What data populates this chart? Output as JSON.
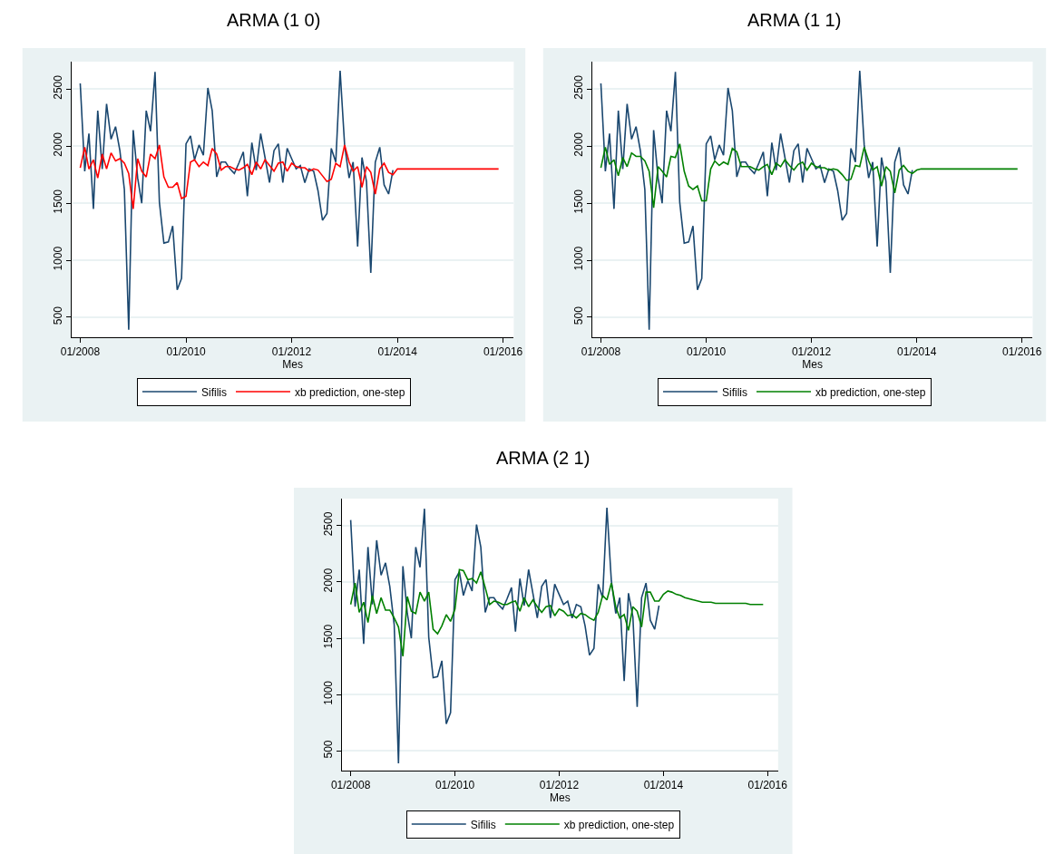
{
  "chart_data": [
    {
      "type": "line",
      "title": "ARMA (1 0)",
      "xlabel": "Mes",
      "grid": "y",
      "legend": "bottom",
      "x": [
        "2008-01",
        "2008-02",
        "2008-03",
        "2008-04",
        "2008-05",
        "2008-06",
        "2008-07",
        "2008-08",
        "2008-09",
        "2008-10",
        "2008-11",
        "2008-12",
        "2009-01",
        "2009-02",
        "2009-03",
        "2009-04",
        "2009-05",
        "2009-06",
        "2009-07",
        "2009-08",
        "2009-09",
        "2009-10",
        "2009-11",
        "2009-12",
        "2010-01",
        "2010-02",
        "2010-03",
        "2010-04",
        "2010-05",
        "2010-06",
        "2010-07",
        "2010-08",
        "2010-09",
        "2010-10",
        "2010-11",
        "2010-12",
        "2011-01",
        "2011-02",
        "2011-03",
        "2011-04",
        "2011-05",
        "2011-06",
        "2011-07",
        "2011-08",
        "2011-09",
        "2011-10",
        "2011-11",
        "2011-12",
        "2012-01",
        "2012-02",
        "2012-03",
        "2012-04",
        "2012-05",
        "2012-06",
        "2012-07",
        "2012-08",
        "2012-09",
        "2012-10",
        "2012-11",
        "2012-12",
        "2013-01",
        "2013-02",
        "2013-03",
        "2013-04",
        "2013-05",
        "2013-06",
        "2013-07",
        "2013-08",
        "2013-09",
        "2013-10",
        "2013-11",
        "2013-12",
        "2014-01",
        "2014-02",
        "2014-03",
        "2014-04",
        "2014-05",
        "2014-06",
        "2014-07",
        "2014-08",
        "2014-09",
        "2014-10",
        "2014-11",
        "2014-12",
        "2015-01",
        "2015-02",
        "2015-03",
        "2015-04",
        "2015-05",
        "2015-06",
        "2015-07",
        "2015-08",
        "2015-09",
        "2015-10",
        "2015-11",
        "2015-12"
      ],
      "xlim": [
        "2007-11-01",
        "2016-03-15"
      ],
      "ylim": [
        325,
        2740
      ],
      "xticks": [
        {
          "value": "2008-01",
          "label": "01/2008"
        },
        {
          "value": "2010-01",
          "label": "01/2010"
        },
        {
          "value": "2012-01",
          "label": "01/2012"
        },
        {
          "value": "2014-01",
          "label": "01/2014"
        },
        {
          "value": "2016-01",
          "label": "01/2016"
        }
      ],
      "yticks": [
        500,
        1000,
        1500,
        2000,
        2500
      ],
      "series": [
        {
          "name": "Sifilis",
          "color": "#1a476f",
          "values": [
            2550,
            1780,
            2110,
            1450,
            2310,
            1800,
            2370,
            2060,
            2170,
            1960,
            1620,
            390,
            2140,
            1720,
            1500,
            2310,
            2130,
            2650,
            1510,
            1150,
            1160,
            1300,
            740,
            840,
            2020,
            2090,
            1880,
            2010,
            1920,
            2510,
            2310,
            1730,
            1860,
            1860,
            1800,
            1760,
            1850,
            1950,
            1560,
            2030,
            1790,
            2110,
            1900,
            1680,
            1960,
            2020,
            1680,
            1980,
            1890,
            1800,
            1830,
            1680,
            1800,
            1780,
            1610,
            1350,
            1410,
            1980,
            1860,
            2660,
            2010,
            1720,
            1860,
            1120,
            1900,
            1690,
            890,
            1860,
            1990,
            1660,
            1580,
            1790,
            null,
            null,
            null,
            null,
            null,
            null,
            null,
            null,
            null,
            null,
            null,
            null,
            null,
            null,
            null,
            null,
            null,
            null,
            null,
            null,
            null,
            null,
            null,
            null
          ]
        },
        {
          "name": "xb prediction, one-step",
          "color": "#ff0000",
          "values": [
            1810,
            1990,
            1800,
            1880,
            1720,
            1930,
            1800,
            1940,
            1870,
            1890,
            1850,
            1760,
            1450,
            1890,
            1780,
            1730,
            1930,
            1890,
            2010,
            1730,
            1640,
            1640,
            1680,
            1540,
            1560,
            1860,
            1880,
            1820,
            1860,
            1830,
            1980,
            1930,
            1790,
            1820,
            1820,
            1800,
            1790,
            1810,
            1840,
            1750,
            1860,
            1800,
            1880,
            1830,
            1780,
            1850,
            1860,
            1780,
            1850,
            1820,
            1810,
            1810,
            1780,
            1800,
            1790,
            1740,
            1690,
            1710,
            1850,
            1820,
            2010,
            1860,
            1780,
            1820,
            1640,
            1820,
            1770,
            1580,
            1800,
            1850,
            1770,
            1750,
            1800,
            1800,
            1800,
            1800,
            1800,
            1800,
            1800,
            1800,
            1800,
            1800,
            1800,
            1800,
            1800,
            1800,
            1800,
            1800,
            1800,
            1800,
            1800,
            1800,
            1800,
            1800,
            1800,
            1800
          ]
        }
      ]
    },
    {
      "type": "line",
      "title": "ARMA (1 1)",
      "xlabel": "Mes",
      "grid": "y",
      "legend": "bottom",
      "x": [
        "2008-01",
        "2008-02",
        "2008-03",
        "2008-04",
        "2008-05",
        "2008-06",
        "2008-07",
        "2008-08",
        "2008-09",
        "2008-10",
        "2008-11",
        "2008-12",
        "2009-01",
        "2009-02",
        "2009-03",
        "2009-04",
        "2009-05",
        "2009-06",
        "2009-07",
        "2009-08",
        "2009-09",
        "2009-10",
        "2009-11",
        "2009-12",
        "2010-01",
        "2010-02",
        "2010-03",
        "2010-04",
        "2010-05",
        "2010-06",
        "2010-07",
        "2010-08",
        "2010-09",
        "2010-10",
        "2010-11",
        "2010-12",
        "2011-01",
        "2011-02",
        "2011-03",
        "2011-04",
        "2011-05",
        "2011-06",
        "2011-07",
        "2011-08",
        "2011-09",
        "2011-10",
        "2011-11",
        "2011-12",
        "2012-01",
        "2012-02",
        "2012-03",
        "2012-04",
        "2012-05",
        "2012-06",
        "2012-07",
        "2012-08",
        "2012-09",
        "2012-10",
        "2012-11",
        "2012-12",
        "2013-01",
        "2013-02",
        "2013-03",
        "2013-04",
        "2013-05",
        "2013-06",
        "2013-07",
        "2013-08",
        "2013-09",
        "2013-10",
        "2013-11",
        "2013-12",
        "2014-01",
        "2014-02",
        "2014-03",
        "2014-04",
        "2014-05",
        "2014-06",
        "2014-07",
        "2014-08",
        "2014-09",
        "2014-10",
        "2014-11",
        "2014-12",
        "2015-01",
        "2015-02",
        "2015-03",
        "2015-04",
        "2015-05",
        "2015-06",
        "2015-07",
        "2015-08",
        "2015-09",
        "2015-10",
        "2015-11",
        "2015-12"
      ],
      "xlim": [
        "2007-11-01",
        "2016-03-15"
      ],
      "ylim": [
        325,
        2740
      ],
      "xticks": [
        {
          "value": "2008-01",
          "label": "01/2008"
        },
        {
          "value": "2010-01",
          "label": "01/2010"
        },
        {
          "value": "2012-01",
          "label": "01/2012"
        },
        {
          "value": "2014-01",
          "label": "01/2014"
        },
        {
          "value": "2016-01",
          "label": "01/2016"
        }
      ],
      "yticks": [
        500,
        1000,
        1500,
        2000,
        2500
      ],
      "series": [
        {
          "name": "Sifilis",
          "color": "#1a476f",
          "values": [
            2550,
            1780,
            2110,
            1450,
            2310,
            1800,
            2370,
            2060,
            2170,
            1960,
            1620,
            390,
            2140,
            1720,
            1500,
            2310,
            2130,
            2650,
            1510,
            1150,
            1160,
            1300,
            740,
            840,
            2020,
            2090,
            1880,
            2010,
            1920,
            2510,
            2310,
            1730,
            1860,
            1860,
            1800,
            1760,
            1850,
            1950,
            1560,
            2030,
            1790,
            2110,
            1900,
            1680,
            1960,
            2020,
            1680,
            1980,
            1890,
            1800,
            1830,
            1680,
            1800,
            1780,
            1610,
            1350,
            1410,
            1980,
            1860,
            2660,
            2010,
            1720,
            1860,
            1120,
            1900,
            1690,
            890,
            1860,
            1990,
            1660,
            1580,
            1790,
            null,
            null,
            null,
            null,
            null,
            null,
            null,
            null,
            null,
            null,
            null,
            null,
            null,
            null,
            null,
            null,
            null,
            null,
            null,
            null,
            null,
            null,
            null,
            null
          ]
        },
        {
          "name": "xb prediction, one-step",
          "color": "#008000",
          "values": [
            1810,
            1990,
            1840,
            1880,
            1740,
            1900,
            1820,
            1940,
            1910,
            1910,
            1870,
            1780,
            1460,
            1820,
            1780,
            1730,
            1910,
            1900,
            2020,
            1780,
            1650,
            1620,
            1650,
            1520,
            1520,
            1800,
            1870,
            1830,
            1860,
            1840,
            1980,
            1950,
            1820,
            1820,
            1820,
            1800,
            1790,
            1820,
            1840,
            1750,
            1850,
            1820,
            1880,
            1830,
            1790,
            1840,
            1860,
            1790,
            1850,
            1820,
            1810,
            1810,
            1790,
            1800,
            1790,
            1750,
            1700,
            1710,
            1830,
            1820,
            1990,
            1870,
            1790,
            1820,
            1650,
            1820,
            1780,
            1590,
            1790,
            1830,
            1780,
            1760,
            1790,
            1800,
            1800,
            1800,
            1800,
            1800,
            1800,
            1800,
            1800,
            1800,
            1800,
            1800,
            1800,
            1800,
            1800,
            1800,
            1800,
            1800,
            1800,
            1800,
            1800,
            1800,
            1800,
            1800
          ]
        }
      ]
    },
    {
      "type": "line",
      "title": "ARMA (2 1)",
      "xlabel": "Mes",
      "grid": "y",
      "legend": "bottom",
      "x": [
        "2008-01",
        "2008-02",
        "2008-03",
        "2008-04",
        "2008-05",
        "2008-06",
        "2008-07",
        "2008-08",
        "2008-09",
        "2008-10",
        "2008-11",
        "2008-12",
        "2009-01",
        "2009-02",
        "2009-03",
        "2009-04",
        "2009-05",
        "2009-06",
        "2009-07",
        "2009-08",
        "2009-09",
        "2009-10",
        "2009-11",
        "2009-12",
        "2010-01",
        "2010-02",
        "2010-03",
        "2010-04",
        "2010-05",
        "2010-06",
        "2010-07",
        "2010-08",
        "2010-09",
        "2010-10",
        "2010-11",
        "2010-12",
        "2011-01",
        "2011-02",
        "2011-03",
        "2011-04",
        "2011-05",
        "2011-06",
        "2011-07",
        "2011-08",
        "2011-09",
        "2011-10",
        "2011-11",
        "2011-12",
        "2012-01",
        "2012-02",
        "2012-03",
        "2012-04",
        "2012-05",
        "2012-06",
        "2012-07",
        "2012-08",
        "2012-09",
        "2012-10",
        "2012-11",
        "2012-12",
        "2013-01",
        "2013-02",
        "2013-03",
        "2013-04",
        "2013-05",
        "2013-06",
        "2013-07",
        "2013-08",
        "2013-09",
        "2013-10",
        "2013-11",
        "2013-12",
        "2014-01",
        "2014-02",
        "2014-03",
        "2014-04",
        "2014-05",
        "2014-06",
        "2014-07",
        "2014-08",
        "2014-09",
        "2014-10",
        "2014-11",
        "2014-12",
        "2015-01",
        "2015-02",
        "2015-03",
        "2015-04",
        "2015-05",
        "2015-06",
        "2015-07",
        "2015-08",
        "2015-09",
        "2015-10",
        "2015-11",
        "2015-12"
      ],
      "xlim": [
        "2007-11-01",
        "2016-03-15"
      ],
      "ylim": [
        325,
        2740
      ],
      "xticks": [
        {
          "value": "2008-01",
          "label": "01/2008"
        },
        {
          "value": "2010-01",
          "label": "01/2010"
        },
        {
          "value": "2012-01",
          "label": "01/2012"
        },
        {
          "value": "2014-01",
          "label": "01/2014"
        },
        {
          "value": "2016-01",
          "label": "01/2016"
        }
      ],
      "yticks": [
        500,
        1000,
        1500,
        2000,
        2500
      ],
      "series": [
        {
          "name": "Sifilis",
          "color": "#1a476f",
          "values": [
            2550,
            1780,
            2110,
            1450,
            2310,
            1800,
            2370,
            2060,
            2170,
            1960,
            1620,
            390,
            2140,
            1720,
            1500,
            2310,
            2130,
            2650,
            1510,
            1150,
            1160,
            1300,
            740,
            840,
            2020,
            2090,
            1880,
            2010,
            1920,
            2510,
            2310,
            1730,
            1860,
            1860,
            1800,
            1760,
            1850,
            1950,
            1560,
            2030,
            1790,
            2110,
            1900,
            1680,
            1960,
            2020,
            1680,
            1980,
            1890,
            1800,
            1830,
            1680,
            1800,
            1780,
            1610,
            1350,
            1410,
            1980,
            1860,
            2660,
            2010,
            1720,
            1860,
            1120,
            1900,
            1690,
            890,
            1860,
            1990,
            1660,
            1580,
            1790,
            null,
            null,
            null,
            null,
            null,
            null,
            null,
            null,
            null,
            null,
            null,
            null,
            null,
            null,
            null,
            null,
            null,
            null,
            null,
            null,
            null,
            null,
            null,
            null
          ]
        },
        {
          "name": "xb prediction, one-step",
          "color": "#008000",
          "values": [
            1800,
            1990,
            1730,
            1820,
            1640,
            1880,
            1720,
            1860,
            1750,
            1750,
            1680,
            1600,
            1340,
            1870,
            1740,
            1720,
            1910,
            1830,
            1910,
            1580,
            1540,
            1610,
            1710,
            1650,
            1760,
            2110,
            2100,
            2020,
            2030,
            1990,
            2090,
            1950,
            1800,
            1830,
            1820,
            1800,
            1800,
            1820,
            1830,
            1740,
            1860,
            1780,
            1840,
            1780,
            1730,
            1780,
            1790,
            1700,
            1760,
            1740,
            1700,
            1710,
            1680,
            1720,
            1710,
            1680,
            1660,
            1730,
            1880,
            1840,
            1990,
            1780,
            1680,
            1710,
            1570,
            1780,
            1740,
            1600,
            1910,
            1910,
            1830,
            1830,
            1890,
            1920,
            1910,
            1890,
            1880,
            1860,
            1850,
            1840,
            1830,
            1820,
            1820,
            1820,
            1810,
            1810,
            1810,
            1810,
            1810,
            1810,
            1810,
            1810,
            1800,
            1800,
            1800,
            1800
          ]
        }
      ]
    }
  ]
}
